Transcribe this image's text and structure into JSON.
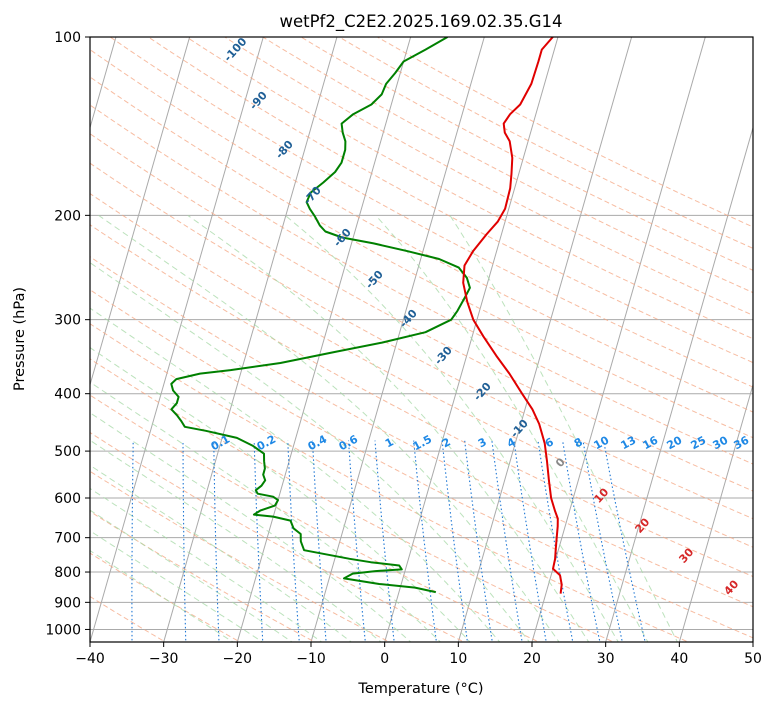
{
  "chart_data": {
    "type": "skew-t log-p",
    "title": "wetPf2_C2E2.2025.169.02.35.G14",
    "xlabel": "Temperature (°C)",
    "ylabel": "Pressure (hPa)",
    "xlim": [
      -40,
      50
    ],
    "ylim_hpa": [
      1050,
      100
    ],
    "grid": true,
    "x_ticks": [
      "−40",
      "−30",
      "−20",
      "−10",
      "0",
      "10",
      "20",
      "30",
      "40",
      "50"
    ],
    "x_tick_values": [
      -40,
      -30,
      -20,
      -10,
      0,
      10,
      20,
      30,
      40,
      50
    ],
    "y_ticks": [
      "100",
      "200",
      "300",
      "400",
      "500",
      "600",
      "700",
      "800",
      "900",
      "1000"
    ],
    "y_tick_values": [
      100,
      200,
      300,
      400,
      500,
      600,
      700,
      800,
      900,
      1000
    ],
    "temperature_profile": {
      "color": "#e00000",
      "points": [
        [
          22.0,
          870
        ],
        [
          21.8,
          840
        ],
        [
          21.2,
          810
        ],
        [
          20.0,
          790
        ],
        [
          19.9,
          760
        ],
        [
          19.6,
          730
        ],
        [
          19.3,
          700
        ],
        [
          19.0,
          670
        ],
        [
          18.7,
          650
        ],
        [
          18.0,
          630
        ],
        [
          17.0,
          600
        ],
        [
          16.0,
          560
        ],
        [
          15.0,
          520
        ],
        [
          14.0,
          485
        ],
        [
          12.5,
          450
        ],
        [
          11.0,
          425
        ],
        [
          9.0,
          400
        ],
        [
          6.5,
          370
        ],
        [
          4.0,
          345
        ],
        [
          1.5,
          320
        ],
        [
          -0.5,
          300
        ],
        [
          -2.0,
          280
        ],
        [
          -3.3,
          260
        ],
        [
          -3.8,
          243
        ],
        [
          -3.2,
          230
        ],
        [
          -2.0,
          215
        ],
        [
          -1.0,
          205
        ],
        [
          -0.5,
          195
        ],
        [
          -0.6,
          180
        ],
        [
          -1.0,
          170
        ],
        [
          -1.5,
          160
        ],
        [
          -2.5,
          150
        ],
        [
          -3.5,
          145
        ],
        [
          -4.0,
          140
        ],
        [
          -3.5,
          135
        ],
        [
          -2.5,
          130
        ],
        [
          -1.8,
          120
        ],
        [
          -1.7,
          110
        ],
        [
          -1.7,
          105
        ],
        [
          -0.7,
          100
        ]
      ]
    },
    "dewpoint_profile": {
      "color": "#008000",
      "points": [
        [
          5.0,
          865
        ],
        [
          2.0,
          850
        ],
        [
          -3.0,
          838
        ],
        [
          -8.0,
          820
        ],
        [
          -7.0,
          805
        ],
        [
          -4.0,
          797
        ],
        [
          -0.5,
          792
        ],
        [
          -1.0,
          780
        ],
        [
          -5.0,
          770
        ],
        [
          -8.0,
          760
        ],
        [
          -14.5,
          735
        ],
        [
          -15.3,
          710
        ],
        [
          -15.6,
          690
        ],
        [
          -16.8,
          675
        ],
        [
          -17.5,
          655
        ],
        [
          -20.0,
          645
        ],
        [
          -22.7,
          640
        ],
        [
          -22.0,
          630
        ],
        [
          -20.2,
          618
        ],
        [
          -20.0,
          605
        ],
        [
          -20.8,
          597
        ],
        [
          -23.0,
          590
        ],
        [
          -23.4,
          582
        ],
        [
          -22.8,
          572
        ],
        [
          -22.5,
          560
        ],
        [
          -23.0,
          548
        ],
        [
          -23.0,
          535
        ],
        [
          -23.4,
          520
        ],
        [
          -23.7,
          505
        ],
        [
          -25.5,
          490
        ],
        [
          -28.0,
          475
        ],
        [
          -32.5,
          462
        ],
        [
          -35.5,
          455
        ],
        [
          -36.2,
          445
        ],
        [
          -37.0,
          435
        ],
        [
          -38.0,
          425
        ],
        [
          -37.5,
          415
        ],
        [
          -37.5,
          405
        ],
        [
          -38.5,
          395
        ],
        [
          -39.0,
          385
        ],
        [
          -38.5,
          378
        ],
        [
          -35.5,
          370
        ],
        [
          -31.5,
          365
        ],
        [
          -25.0,
          355
        ],
        [
          -18.0,
          340
        ],
        [
          -12.0,
          328
        ],
        [
          -6.5,
          315
        ],
        [
          -3.5,
          300
        ],
        [
          -3.0,
          290
        ],
        [
          -2.5,
          275
        ],
        [
          -2.2,
          265
        ],
        [
          -3.0,
          255
        ],
        [
          -4.5,
          245
        ],
        [
          -7.5,
          237
        ],
        [
          -12.0,
          230
        ],
        [
          -17.0,
          223
        ],
        [
          -21.5,
          218
        ],
        [
          -24.0,
          213
        ],
        [
          -25.0,
          208
        ],
        [
          -26.0,
          201
        ],
        [
          -27.0,
          195
        ],
        [
          -27.7,
          190
        ],
        [
          -27.5,
          183
        ],
        [
          -26.2,
          176
        ],
        [
          -25.0,
          169
        ],
        [
          -24.5,
          163
        ],
        [
          -24.5,
          155
        ],
        [
          -24.8,
          150
        ],
        [
          -25.5,
          145
        ],
        [
          -26.0,
          140
        ],
        [
          -24.8,
          135
        ],
        [
          -22.7,
          130
        ],
        [
          -21.7,
          125
        ],
        [
          -21.5,
          120
        ],
        [
          -20.7,
          115
        ],
        [
          -20.0,
          110
        ],
        [
          -17.5,
          105
        ],
        [
          -15.0,
          100
        ]
      ]
    },
    "dry_adiabat_labels": [
      "-100",
      "-90",
      "-80",
      "-70",
      "-60",
      "-50",
      "-40",
      "-30",
      "-20",
      "-10"
    ],
    "moist_adiabat_labels": [
      "0",
      "10",
      "20",
      "30",
      "40"
    ],
    "mixing_ratio_labels": [
      "0.1",
      "0.2",
      "0.4",
      "0.6",
      "1",
      "1.5",
      "2",
      "3",
      "4",
      "6",
      "8",
      "10",
      "13",
      "16",
      "20",
      "25",
      "30",
      "36"
    ],
    "mixing_ratio_values": [
      0.1,
      0.2,
      0.4,
      0.6,
      1,
      1.5,
      2,
      3,
      4,
      6,
      8,
      10,
      13,
      16,
      20,
      25,
      30,
      36
    ],
    "colors": {
      "temperature": "#e00000",
      "dewpoint": "#008000",
      "isotherm": "#aaaaaa",
      "isobar": "#aaaaaa",
      "dry_adiabat": "#f4a582",
      "moist_adiabat": "#a6d8a6",
      "mixing_ratio": "#1f77d4",
      "dry_label": "#1f5f96",
      "mixing_label": "#1e88e5",
      "moist_label_zero": "#888888",
      "moist_label": "#d62728"
    }
  }
}
